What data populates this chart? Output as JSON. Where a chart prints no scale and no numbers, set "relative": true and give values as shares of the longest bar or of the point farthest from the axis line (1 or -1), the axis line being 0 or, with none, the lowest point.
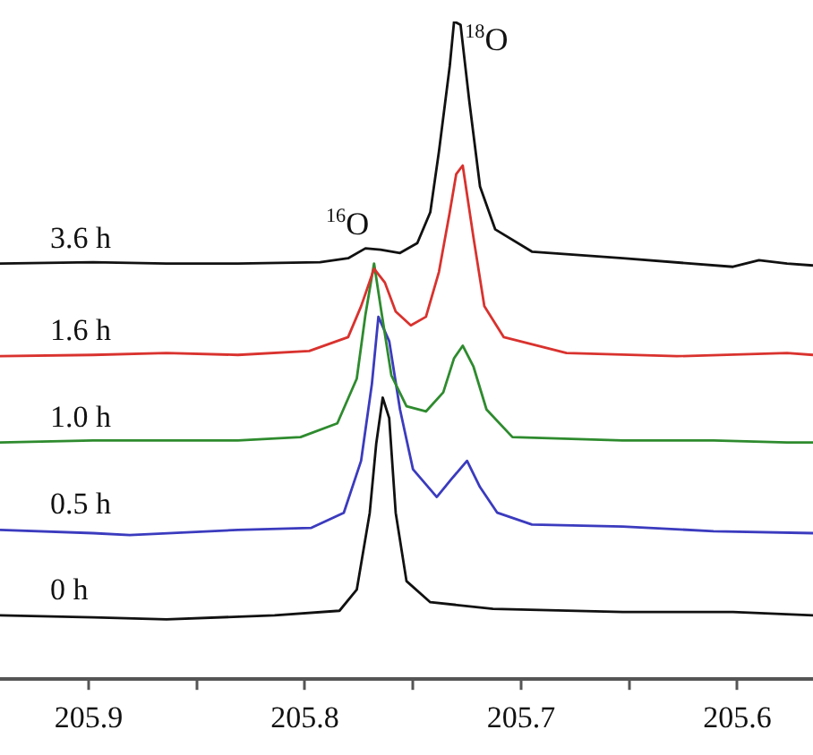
{
  "chart_data": {
    "type": "line",
    "relative": true,
    "legend": false,
    "grid": false,
    "marker": "none",
    "line_style": "solid",
    "tick_labels": "x",
    "xlim": [
      205.941,
      205.565
    ],
    "xticks": [
      205.9,
      {
        "value": 205.85,
        "label": null
      },
      205.8,
      {
        "value": 205.75,
        "label": null
      },
      205.7,
      {
        "value": 205.65,
        "label": null
      },
      205.6
    ],
    "annotations": [
      {
        "text": "$^{16}$O",
        "x": 205.772,
        "y": 0.655
      },
      {
        "text": "$^{18}$O",
        "x": 205.731,
        "y": 1.0
      }
    ],
    "series": [
      {
        "name": "3.6 h",
        "color": "#111111",
        "x": [
          205.941,
          205.898,
          205.864,
          205.831,
          205.793,
          205.78,
          205.772,
          205.765,
          205.756,
          205.748,
          205.742,
          205.738,
          205.733,
          205.731,
          205.728,
          205.724,
          205.719,
          205.712,
          205.695,
          205.653,
          205.602,
          205.59,
          205.577,
          205.565
        ],
        "values": [
          0.632,
          0.634,
          0.632,
          0.632,
          0.634,
          0.64,
          0.655,
          0.653,
          0.648,
          0.663,
          0.71,
          0.802,
          0.932,
          1.0,
          0.995,
          0.88,
          0.749,
          0.684,
          0.65,
          0.64,
          0.627,
          0.637,
          0.632,
          0.629
        ]
      },
      {
        "name": "1.6 h",
        "color": "#d9322e",
        "x": [
          205.941,
          205.898,
          205.864,
          205.831,
          205.798,
          205.78,
          205.774,
          205.768,
          205.763,
          205.758,
          205.751,
          205.744,
          205.738,
          205.733,
          205.73,
          205.727,
          205.722,
          205.717,
          205.708,
          205.679,
          205.628,
          205.577,
          205.565
        ],
        "values": [
          0.491,
          0.493,
          0.496,
          0.493,
          0.499,
          0.52,
          0.567,
          0.624,
          0.603,
          0.559,
          0.538,
          0.551,
          0.619,
          0.71,
          0.768,
          0.781,
          0.671,
          0.567,
          0.52,
          0.496,
          0.491,
          0.496,
          0.493
        ]
      },
      {
        "name": "1.0 h",
        "color": "#2e8b2e",
        "x": [
          205.941,
          205.898,
          205.864,
          205.831,
          205.802,
          205.785,
          205.776,
          205.772,
          205.768,
          205.765,
          205.76,
          205.753,
          205.744,
          205.736,
          205.731,
          205.727,
          205.722,
          205.716,
          205.704,
          205.653,
          205.611,
          205.577,
          205.565
        ],
        "values": [
          0.36,
          0.363,
          0.363,
          0.363,
          0.368,
          0.389,
          0.457,
          0.554,
          0.632,
          0.567,
          0.462,
          0.415,
          0.407,
          0.436,
          0.488,
          0.507,
          0.475,
          0.41,
          0.368,
          0.363,
          0.363,
          0.36,
          0.36
        ]
      },
      {
        "name": "0.5 h",
        "color": "#3b3bbf",
        "x": [
          205.941,
          205.898,
          205.881,
          205.831,
          205.797,
          205.782,
          205.774,
          205.769,
          205.766,
          205.761,
          205.756,
          205.75,
          205.739,
          205.732,
          205.725,
          205.719,
          205.711,
          205.695,
          205.653,
          205.611,
          205.565
        ],
        "values": [
          0.227,
          0.222,
          0.219,
          0.227,
          0.23,
          0.253,
          0.332,
          0.449,
          0.551,
          0.514,
          0.41,
          0.319,
          0.277,
          0.305,
          0.332,
          0.292,
          0.253,
          0.235,
          0.232,
          0.225,
          0.222
        ]
      },
      {
        "name": "0 h",
        "color": "#111111",
        "x": [
          205.941,
          205.898,
          205.864,
          205.814,
          205.784,
          205.776,
          205.77,
          205.767,
          205.764,
          205.761,
          205.758,
          205.753,
          205.742,
          205.713,
          205.653,
          205.602,
          205.565
        ],
        "values": [
          0.097,
          0.094,
          0.091,
          0.097,
          0.104,
          0.136,
          0.253,
          0.358,
          0.428,
          0.397,
          0.253,
          0.149,
          0.117,
          0.107,
          0.102,
          0.102,
          0.097
        ]
      }
    ]
  }
}
